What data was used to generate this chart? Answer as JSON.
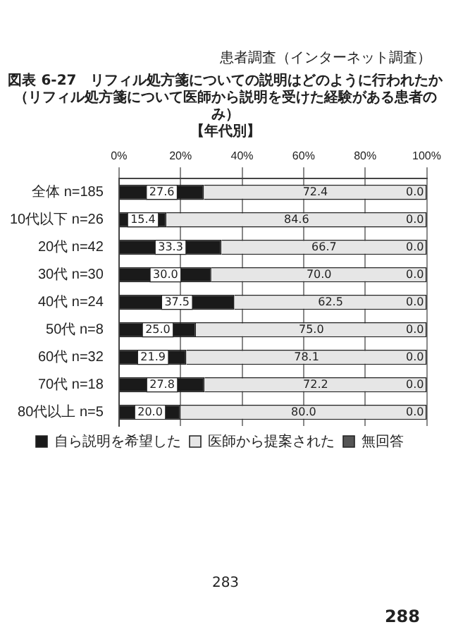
{
  "chart_data": {
    "type": "bar",
    "orientation": "horizontal",
    "stacked": true,
    "title": "図表 6-27　リフィル処方箋についての説明はどのように行われたか",
    "subtitle": "（リフィル処方箋について医師から説明を受けた経験がある患者のみ）",
    "annotations": [
      "患者調査（インターネット調査）",
      "【年代別】",
      "283",
      "288"
    ],
    "categories": [
      "全体 n=185",
      "10代以下 n=26",
      "20代 n=42",
      "30代 n=30",
      "40代 n=24",
      "50代 n=8",
      "60代 n=32",
      "70代 n=18",
      "80代以上 n=5"
    ],
    "series": [
      {
        "name": "自ら説明を希望した",
        "color": "#1a1a1a",
        "values": [
          27.6,
          15.4,
          33.3,
          30.0,
          37.5,
          25.0,
          21.9,
          27.8,
          20.0
        ],
        "value_labels": [
          "27.6",
          "15.4",
          "33.3",
          "30.0",
          "37.5",
          "25.0",
          "21.9",
          "27.8",
          "20.0"
        ]
      },
      {
        "name": "医師から提案された",
        "color": "#e6e6e6",
        "values": [
          72.4,
          84.6,
          66.7,
          70.0,
          62.5,
          75.0,
          78.1,
          72.2,
          80.0
        ],
        "value_labels": [
          "72.4",
          "84.6",
          "66.7",
          "70.0",
          "62.5",
          "75.0",
          "78.1",
          "72.2",
          "80.0"
        ]
      },
      {
        "name": "無回答",
        "color": "#555555",
        "values": [
          0.0,
          0.0,
          0.0,
          0.0,
          0.0,
          0.0,
          0.0,
          0.0,
          0.0
        ],
        "value_labels": [
          "0.0",
          "0.0",
          "0.0",
          "0.0",
          "0.0",
          "0.0",
          "0.0",
          "0.0",
          "0.0"
        ]
      }
    ],
    "xlim": [
      0,
      100
    ],
    "xticks": [
      {
        "value": 0,
        "label": "0%"
      },
      {
        "value": 20,
        "label": "20%"
      },
      {
        "value": 40,
        "label": "40%"
      },
      {
        "value": 60,
        "label": "60%"
      },
      {
        "value": 80,
        "label": "80%"
      },
      {
        "value": 100,
        "label": "100%"
      }
    ],
    "grid": "x",
    "legend": "bottom"
  }
}
